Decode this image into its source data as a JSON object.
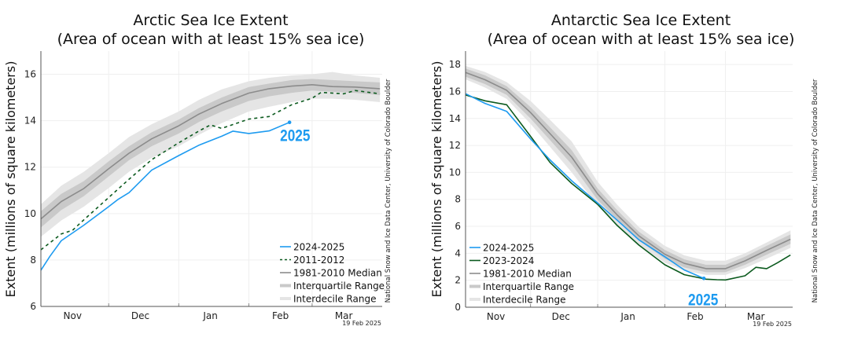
{
  "colors": {
    "current": "#1e9bf0",
    "comparison": "#0b5a1e",
    "median": "#8c8c8c",
    "interquartile": "#c9c9c9",
    "interdecile": "#e5e5e5"
  },
  "chart_data": [
    {
      "type": "line",
      "title_line1": "Arctic Sea Ice Extent",
      "title_line2": "(Area of ocean with at least 15% sea ice)",
      "ylabel": "Extent (millions of square kilometers)",
      "xlabel": "",
      "xlim": [
        "Nov 01",
        "Mar 31"
      ],
      "ylim": [
        6,
        17
      ],
      "yticks": [
        6,
        8,
        10,
        12,
        14,
        16
      ],
      "xticks": [
        "Nov",
        "Dec",
        "Jan",
        "Feb",
        "Mar"
      ],
      "grid": true,
      "legend_placement": "bottom-right",
      "source": "National Snow and Ice Data Center, University of Colorado Boulder",
      "date": "19 Feb 2025",
      "annotation": "2025",
      "x": [
        "Nov 01",
        "Nov 10",
        "Nov 20",
        "Dec 01",
        "Dec 10",
        "Dec 20",
        "Jan 01",
        "Jan 10",
        "Jan 20",
        "Feb 01",
        "Feb 10",
        "Feb 20",
        "Mar 01",
        "Mar 10",
        "Mar 20",
        "Mar 31"
      ],
      "series": [
        {
          "name": "2024-2025",
          "style": "solid",
          "color_key": "current",
          "x": [
            "Nov 01",
            "Nov 05",
            "Nov 10",
            "Nov 20",
            "Dec 01",
            "Dec 05",
            "Dec 10",
            "Dec 20",
            "Jan 01",
            "Jan 10",
            "Jan 20",
            "Jan 25",
            "Feb 01",
            "Feb 10",
            "Feb 19"
          ],
          "values": [
            7.56,
            8.16,
            8.83,
            9.5,
            10.3,
            10.6,
            10.9,
            11.87,
            12.5,
            12.95,
            13.33,
            13.55,
            13.45,
            13.56,
            13.93
          ]
        },
        {
          "name": "2011-2012",
          "style": "dashed",
          "color_key": "comparison",
          "x": [
            "Nov 01",
            "Nov 10",
            "Nov 15",
            "Nov 20",
            "Dec 01",
            "Dec 10",
            "Dec 20",
            "Jan 01",
            "Jan 10",
            "Jan 15",
            "Jan 20",
            "Feb 01",
            "Feb 10",
            "Feb 20",
            "Mar 01",
            "Mar 05",
            "Mar 15",
            "Mar 20",
            "Mar 31"
          ],
          "values": [
            8.44,
            9.12,
            9.28,
            9.73,
            10.69,
            11.48,
            12.32,
            13.05,
            13.56,
            13.82,
            13.67,
            14.07,
            14.18,
            14.69,
            14.97,
            15.22,
            15.16,
            15.3,
            15.16
          ]
        },
        {
          "name": "1981-2010 Median",
          "style": "solid",
          "color_key": "median",
          "values": [
            9.77,
            10.52,
            11.08,
            11.93,
            12.6,
            13.22,
            13.78,
            14.29,
            14.74,
            15.19,
            15.38,
            15.49,
            15.55,
            15.47,
            15.45,
            15.38
          ]
        }
      ],
      "bands": [
        {
          "name": "Interquartile Range",
          "color_key": "interquartile",
          "lower": [
            9.4,
            10.15,
            10.75,
            11.6,
            12.3,
            12.9,
            13.45,
            13.95,
            14.4,
            14.85,
            15.05,
            15.2,
            15.3,
            15.25,
            15.2,
            15.1
          ],
          "upper": [
            10.1,
            10.85,
            11.4,
            12.25,
            12.9,
            13.5,
            14.05,
            14.55,
            15.0,
            15.45,
            15.6,
            15.75,
            15.8,
            15.75,
            15.7,
            15.65
          ]
        },
        {
          "name": "Interdecile Range",
          "color_key": "interdecile",
          "lower": [
            9.0,
            9.7,
            10.3,
            11.1,
            11.8,
            12.4,
            12.9,
            13.4,
            13.9,
            14.4,
            14.6,
            14.8,
            14.95,
            14.95,
            14.9,
            14.8
          ],
          "upper": [
            10.4,
            11.2,
            11.8,
            12.6,
            13.3,
            13.85,
            14.4,
            14.9,
            15.35,
            15.7,
            15.85,
            15.95,
            16.0,
            16.1,
            15.95,
            15.85
          ]
        }
      ]
    },
    {
      "type": "line",
      "title_line1": "Antarctic Sea Ice Extent",
      "title_line2": "(Area of ocean with at least 15% sea ice)",
      "ylabel": "Extent (millions of square kilometers)",
      "xlabel": "",
      "xlim": [
        "Nov 01",
        "Mar 31"
      ],
      "ylim": [
        0,
        19
      ],
      "yticks": [
        0,
        2,
        4,
        6,
        8,
        10,
        12,
        14,
        16,
        18
      ],
      "xticks": [
        "Nov",
        "Dec",
        "Jan",
        "Feb",
        "Mar"
      ],
      "grid": true,
      "legend_placement": "bottom-left",
      "source": "National Snow and Ice Data Center, University of Colorado Boulder",
      "date": "19 Feb 2025",
      "annotation": "2025",
      "x": [
        "Nov 01",
        "Nov 10",
        "Nov 20",
        "Dec 01",
        "Dec 10",
        "Dec 20",
        "Jan 01",
        "Jan 10",
        "Jan 20",
        "Feb 01",
        "Feb 10",
        "Feb 20",
        "Mar 01",
        "Mar 10",
        "Mar 20",
        "Mar 31"
      ],
      "series": [
        {
          "name": "2024-2025",
          "style": "solid",
          "color_key": "current",
          "x": [
            "Nov 01",
            "Nov 10",
            "Nov 20",
            "Dec 01",
            "Dec 10",
            "Dec 20",
            "Jan 01",
            "Jan 10",
            "Jan 20",
            "Feb 01",
            "Feb 10",
            "Feb 19"
          ],
          "values": [
            15.84,
            15.12,
            14.53,
            12.49,
            10.93,
            9.38,
            7.72,
            6.46,
            5.0,
            3.74,
            2.76,
            2.14
          ]
        },
        {
          "name": "2023-2024",
          "style": "solid",
          "color_key": "comparison",
          "x": [
            "Nov 01",
            "Nov 10",
            "Nov 20",
            "Dec 01",
            "Dec 10",
            "Dec 20",
            "Jan 01",
            "Jan 10",
            "Jan 20",
            "Feb 01",
            "Feb 10",
            "Feb 20",
            "Feb 25",
            "Mar 01",
            "Mar 10",
            "Mar 15",
            "Mar 20",
            "Mar 25",
            "Mar 31"
          ],
          "values": [
            15.74,
            15.31,
            15.02,
            12.68,
            10.74,
            9.18,
            7.63,
            6.07,
            4.61,
            3.15,
            2.41,
            2.08,
            2.04,
            2.02,
            2.33,
            2.96,
            2.86,
            3.3,
            3.87
          ]
        },
        {
          "name": "1981-2010 Median",
          "style": "solid",
          "color_key": "median",
          "values": [
            17.41,
            16.87,
            16.09,
            14.44,
            12.88,
            11.13,
            8.4,
            6.85,
            5.29,
            3.93,
            3.25,
            2.86,
            2.86,
            3.44,
            4.22,
            5.04
          ]
        }
      ],
      "bands": [
        {
          "name": "Interquartile Range",
          "color_key": "interquartile",
          "lower": [
            17.1,
            16.55,
            15.75,
            14.0,
            12.4,
            10.6,
            7.95,
            6.5,
            4.95,
            3.6,
            2.95,
            2.6,
            2.6,
            3.15,
            3.9,
            4.7
          ],
          "upper": [
            17.7,
            17.2,
            16.4,
            14.85,
            13.35,
            11.65,
            8.8,
            7.2,
            5.6,
            4.25,
            3.55,
            3.15,
            3.15,
            3.75,
            4.55,
            5.4
          ]
        },
        {
          "name": "Interdecile Range",
          "color_key": "interdecile",
          "lower": [
            16.9,
            16.3,
            15.45,
            13.6,
            11.9,
            10.0,
            7.5,
            6.1,
            4.6,
            3.3,
            2.7,
            2.4,
            2.4,
            2.9,
            3.6,
            4.4
          ],
          "upper": [
            17.9,
            17.45,
            16.7,
            15.3,
            13.9,
            12.3,
            9.3,
            7.6,
            5.95,
            4.55,
            3.85,
            3.45,
            3.45,
            4.0,
            4.8,
            5.7
          ]
        }
      ]
    }
  ]
}
